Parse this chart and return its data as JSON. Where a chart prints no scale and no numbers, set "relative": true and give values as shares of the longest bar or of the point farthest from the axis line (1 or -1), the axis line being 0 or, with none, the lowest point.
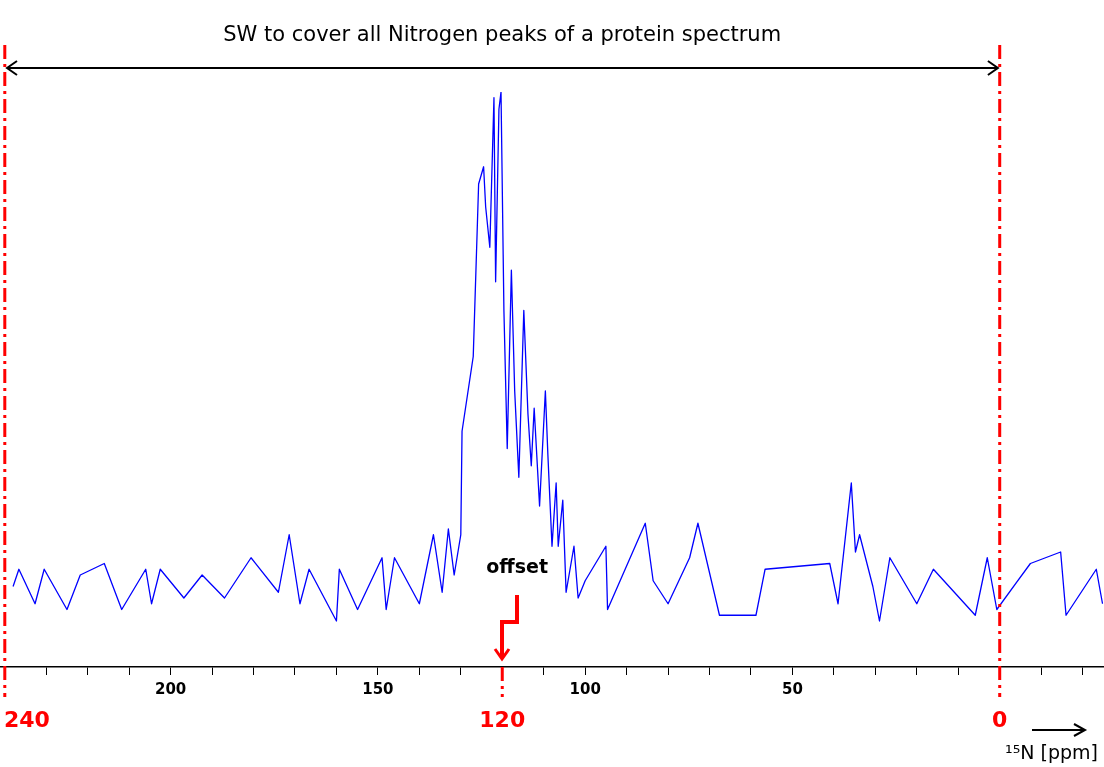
{
  "chart_data": {
    "type": "line",
    "relative": true,
    "xlabel": "¹⁵N [ppm]",
    "xlim": [
      241,
      -25
    ],
    "xticks": [
      {
        "value": 230,
        "label": null
      },
      {
        "value": 220,
        "label": null
      },
      {
        "value": 210,
        "label": null
      },
      200,
      {
        "value": 190,
        "label": null
      },
      {
        "value": 180,
        "label": null
      },
      {
        "value": 170,
        "label": null
      },
      {
        "value": 160,
        "label": null
      },
      150,
      {
        "value": 140,
        "label": null
      },
      {
        "value": 130,
        "label": null
      },
      {
        "value": 120,
        "label": null
      },
      {
        "value": 110,
        "label": null
      },
      100,
      {
        "value": 90,
        "label": null
      },
      {
        "value": 80,
        "label": null
      },
      {
        "value": 70,
        "label": null
      },
      {
        "value": 60,
        "label": null
      },
      50,
      {
        "value": 40,
        "label": null
      },
      {
        "value": 30,
        "label": null
      },
      {
        "value": 20,
        "label": null
      },
      {
        "value": 10,
        "label": null
      },
      {
        "value": 0,
        "label": null
      },
      {
        "value": -10,
        "label": null
      },
      {
        "value": -20,
        "label": null
      }
    ],
    "series": [
      {
        "color": "#0000ff",
        "x": [
          238,
          236.6,
          232.7,
          230.5,
          225,
          221.8,
          216,
          211.8,
          206,
          204.6,
          202.5,
          196.8,
          192.4,
          187,
          180.6,
          174,
          171.4,
          168.8,
          166.6,
          160,
          159.3,
          154.9,
          149,
          148,
          146,
          140,
          136.6,
          134.5,
          133,
          131.6,
          130,
          129.7,
          127,
          126,
          125.7,
          124.5,
          124,
          123,
          122,
          121.6,
          120.8,
          120.3,
          119.6,
          118.8,
          117.8,
          117,
          116,
          114.8,
          113.8,
          113,
          112.3,
          111,
          109.6,
          109,
          108,
          107,
          106.5,
          105.4,
          104.6,
          102.7,
          101.7,
          100,
          95,
          94.6,
          85.5,
          83.6,
          80,
          74.8,
          72.8,
          67.6,
          58.8,
          56.6,
          41,
          39,
          35.8,
          34.8,
          33.8,
          30.6,
          29,
          26.5,
          20,
          16,
          5.9,
          3,
          0.7,
          -7.4,
          -14.7,
          -16,
          -23.3,
          -24.8
        ],
        "values": [
          0.14,
          0.17,
          0.11,
          0.17,
          0.1,
          0.16,
          0.18,
          0.1,
          0.17,
          0.11,
          0.17,
          0.12,
          0.16,
          0.12,
          0.19,
          0.13,
          0.23,
          0.11,
          0.17,
          0.08,
          0.17,
          0.1,
          0.19,
          0.1,
          0.19,
          0.11,
          0.23,
          0.13,
          0.24,
          0.16,
          0.23,
          0.41,
          0.54,
          0.77,
          0.84,
          0.87,
          0.8,
          0.73,
          0.99,
          0.67,
          0.97,
          1,
          0.62,
          0.38,
          0.69,
          0.48,
          0.33,
          0.62,
          0.44,
          0.35,
          0.45,
          0.28,
          0.48,
          0.37,
          0.21,
          0.32,
          0.21,
          0.29,
          0.13,
          0.21,
          0.12,
          0.15,
          0.21,
          0.1,
          0.25,
          0.15,
          0.11,
          0.19,
          0.25,
          0.09,
          0.09,
          0.17,
          0.18,
          0.11,
          0.32,
          0.2,
          0.23,
          0.14,
          0.08,
          0.19,
          0.11,
          0.17,
          0.09,
          0.19,
          0.1,
          0.18,
          0.2,
          0.09,
          0.17,
          0.11
        ]
      }
    ],
    "ref_lines": [
      {
        "axis": "x",
        "value": 240,
        "label": "240",
        "color": "#ff0000",
        "line_style": "dashed"
      },
      {
        "axis": "x",
        "value": 120,
        "label": "120",
        "color": "#ff0000",
        "line_style": "dashed"
      },
      {
        "axis": "x",
        "value": 0,
        "label": "0",
        "color": "#ff0000",
        "line_style": "dashed"
      }
    ],
    "annotations": [
      "SW to cover all Nitrogen peaks of a protein spectrum",
      {
        "text": "offset",
        "x": 120
      }
    ]
  }
}
